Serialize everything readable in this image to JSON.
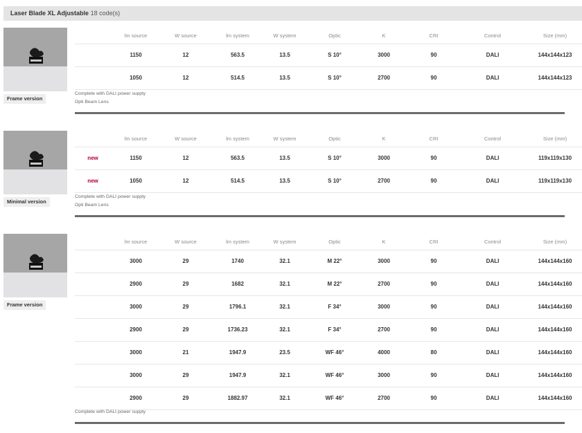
{
  "header": {
    "title": "Laser Blade XL Adjustable",
    "count": "18 code(s)"
  },
  "columns": [
    "lm source",
    "W source",
    "lm system",
    "W system",
    "Optic",
    "K",
    "CRI",
    "Control",
    "Size (mm)"
  ],
  "sections": [
    {
      "version_label": "Frame version",
      "rows": [
        {
          "badge": "",
          "cells": [
            "1150",
            "12",
            "563.5",
            "13.5",
            "S 10°",
            "3000",
            "90",
            "DALI",
            "144x144x123"
          ]
        },
        {
          "badge": "",
          "cells": [
            "1050",
            "12",
            "514.5",
            "13.5",
            "S 10°",
            "2700",
            "90",
            "DALI",
            "144x144x123"
          ]
        }
      ],
      "notes": [
        "Complete with DALI power supply",
        "Opti Beam Lens"
      ]
    },
    {
      "version_label": "Minimal version",
      "rows": [
        {
          "badge": "new",
          "cells": [
            "1150",
            "12",
            "563.5",
            "13.5",
            "S 10°",
            "3000",
            "90",
            "DALI",
            "119x119x130"
          ]
        },
        {
          "badge": "new",
          "cells": [
            "1050",
            "12",
            "514.5",
            "13.5",
            "S 10°",
            "2700",
            "90",
            "DALI",
            "119x119x130"
          ]
        }
      ],
      "notes": [
        "Complete with DALI power supply",
        "Opti Beam Lens"
      ]
    },
    {
      "version_label": "Frame version",
      "rows": [
        {
          "badge": "",
          "cells": [
            "3000",
            "29",
            "1740",
            "32.1",
            "M 22°",
            "3000",
            "90",
            "DALI",
            "144x144x160"
          ]
        },
        {
          "badge": "",
          "cells": [
            "2900",
            "29",
            "1682",
            "32.1",
            "M 22°",
            "2700",
            "90",
            "DALI",
            "144x144x160"
          ]
        },
        {
          "badge": "",
          "cells": [
            "3000",
            "29",
            "1796.1",
            "32.1",
            "F 34°",
            "3000",
            "90",
            "DALI",
            "144x144x160"
          ]
        },
        {
          "badge": "",
          "cells": [
            "2900",
            "29",
            "1736.23",
            "32.1",
            "F 34°",
            "2700",
            "90",
            "DALI",
            "144x144x160"
          ]
        },
        {
          "badge": "",
          "cells": [
            "3000",
            "21",
            "1947.9",
            "23.5",
            "WF 46°",
            "4000",
            "80",
            "DALI",
            "144x144x160"
          ]
        },
        {
          "badge": "",
          "cells": [
            "3000",
            "29",
            "1947.9",
            "32.1",
            "WF 46°",
            "3000",
            "90",
            "DALI",
            "144x144x160"
          ]
        },
        {
          "badge": "",
          "cells": [
            "2900",
            "29",
            "1882.97",
            "32.1",
            "WF 46°",
            "2700",
            "90",
            "DALI",
            "144x144x160"
          ]
        }
      ],
      "notes": [
        "Complete with DALI power supply"
      ]
    }
  ],
  "colors": {
    "header_bg": "#e4e4e4",
    "new_badge": "#b0003a",
    "divider": "#6b6b6b",
    "thumb_bg": "#a6a6a6"
  }
}
